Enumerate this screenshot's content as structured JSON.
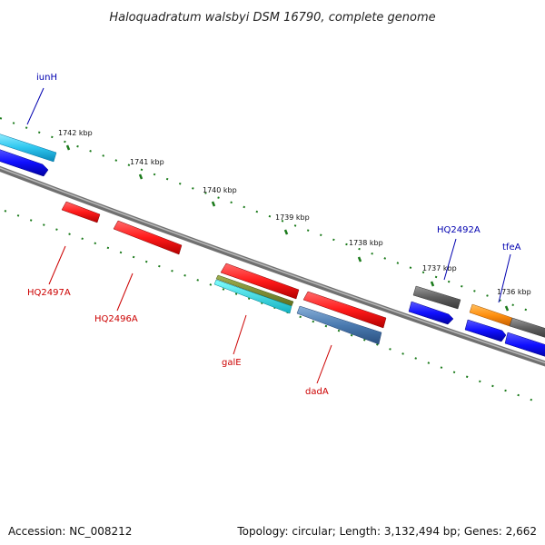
{
  "title": "Haloquadratum walsbyi DSM 16790, complete genome",
  "footer": {
    "accession": "Accession: NC_008212",
    "summary": "Topology: circular; Length: 3,132,494 bp; Genes: 2,662"
  },
  "ticks": [
    "1742 kbp",
    "1741 kbp",
    "1740 kbp",
    "1739 kbp",
    "1738 kbp",
    "1737 kbp",
    "1736 kbp"
  ],
  "gene_labels": {
    "iunH": "iunH",
    "HQ2492A": "HQ2492A",
    "tfeA": "tfeA",
    "HQ2497A": "HQ2497A",
    "HQ2496A": "HQ2496A",
    "galE": "galE",
    "dadA": "dadA"
  },
  "colors": {
    "forward_label": "#0000b0",
    "reverse_label": "#cc0000",
    "tick": "#1a7a1a",
    "backbone": "#808080"
  }
}
